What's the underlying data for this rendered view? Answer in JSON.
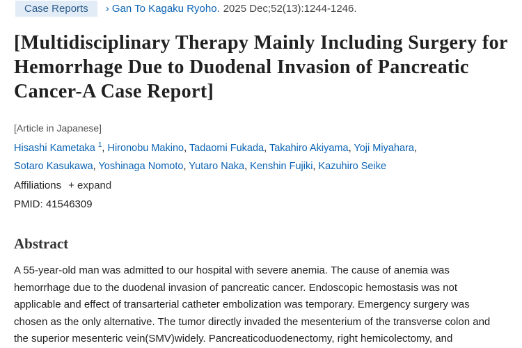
{
  "header": {
    "article_type": "Case Reports",
    "journal": "Gan To Kagaku Ryoho.",
    "citation": "2025 Dec;52(13):1244-1246."
  },
  "title": "[Multidisciplinary Therapy Mainly Including Surgery for Hemorrhage Due to Duodenal Invasion of Pancreatic Cancer-A Case Report]",
  "language_note": "[Article in Japanese]",
  "authors": [
    {
      "name": "Hisashi Kametaka",
      "affiliation": "1"
    },
    {
      "name": "Hironobu Makino"
    },
    {
      "name": "Tadaomi Fukada"
    },
    {
      "name": "Takahiro Akiyama"
    },
    {
      "name": "Yoji Miyahara"
    },
    {
      "name": "Sotaro Kasukawa"
    },
    {
      "name": "Yoshinaga Nomoto"
    },
    {
      "name": "Yutaro Naka"
    },
    {
      "name": "Kenshin Fujiki"
    },
    {
      "name": "Kazuhiro Seike"
    }
  ],
  "author_separator": ",",
  "affiliations": {
    "label": "Affiliations",
    "toggle": "+ expand"
  },
  "pmid": {
    "label": "PMID:",
    "value": "41546309"
  },
  "abstract": {
    "heading": "Abstract",
    "text": "A 55-year-old man was admitted to our hospital with severe anemia. The cause of anemia was hemorrhage due to the duodenal invasion of pancreatic cancer. Endoscopic hemostasis was not applicable and effect of transarterial catheter embolization was temporary. Emergency surgery was chosen as the only alternative. The tumor directly invaded the mesenterium of the transverse colon and the superior mesenteric vein(SMV)widely. Pancreaticoduodenectomy, right hemicolectomy, and"
  }
}
